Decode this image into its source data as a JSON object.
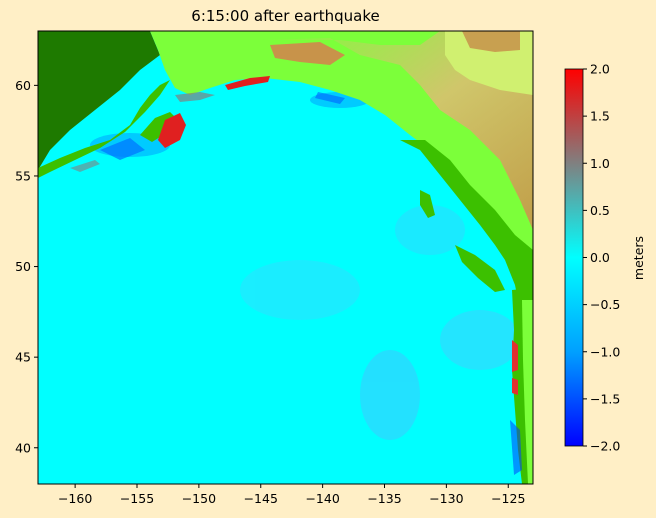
{
  "title": "6:15:00 after earthquake",
  "map": {
    "x_ticks": [
      {
        "value": -160,
        "label": "−160"
      },
      {
        "value": -155,
        "label": "−155"
      },
      {
        "value": -150,
        "label": "−150"
      },
      {
        "value": -145,
        "label": "−145"
      },
      {
        "value": -140,
        "label": "−140"
      },
      {
        "value": -135,
        "label": "−135"
      },
      {
        "value": -130,
        "label": "−130"
      },
      {
        "value": -125,
        "label": "−125"
      }
    ],
    "y_ticks": [
      {
        "value": 40,
        "label": "40"
      },
      {
        "value": 45,
        "label": "45"
      },
      {
        "value": 50,
        "label": "50"
      },
      {
        "value": 55,
        "label": "55"
      },
      {
        "value": 60,
        "label": "60"
      }
    ],
    "lon_range": [
      -163,
      -123
    ],
    "lat_range": [
      38,
      63
    ],
    "ocean_color": "#00ffff",
    "land_colors": [
      "#1e7a00",
      "#3cc000",
      "#7cff3a",
      "#d9c070",
      "#c8934a"
    ]
  },
  "colorbar": {
    "label": "meters",
    "range": [
      -2.0,
      2.0
    ],
    "ticks": [
      {
        "value": 2.0,
        "label": "2.0"
      },
      {
        "value": 1.5,
        "label": "1.5"
      },
      {
        "value": 1.0,
        "label": "1.0"
      },
      {
        "value": 0.5,
        "label": "0.5"
      },
      {
        "value": 0.0,
        "label": "0.0"
      },
      {
        "value": -0.5,
        "label": "−0.5"
      },
      {
        "value": -1.0,
        "label": "−1.0"
      },
      {
        "value": -1.5,
        "label": "−1.5"
      },
      {
        "value": -2.0,
        "label": "−2.0"
      }
    ],
    "colors": [
      "#0000ff",
      "#00a0ff",
      "#00ffff",
      "#808080",
      "#ff0000"
    ]
  }
}
